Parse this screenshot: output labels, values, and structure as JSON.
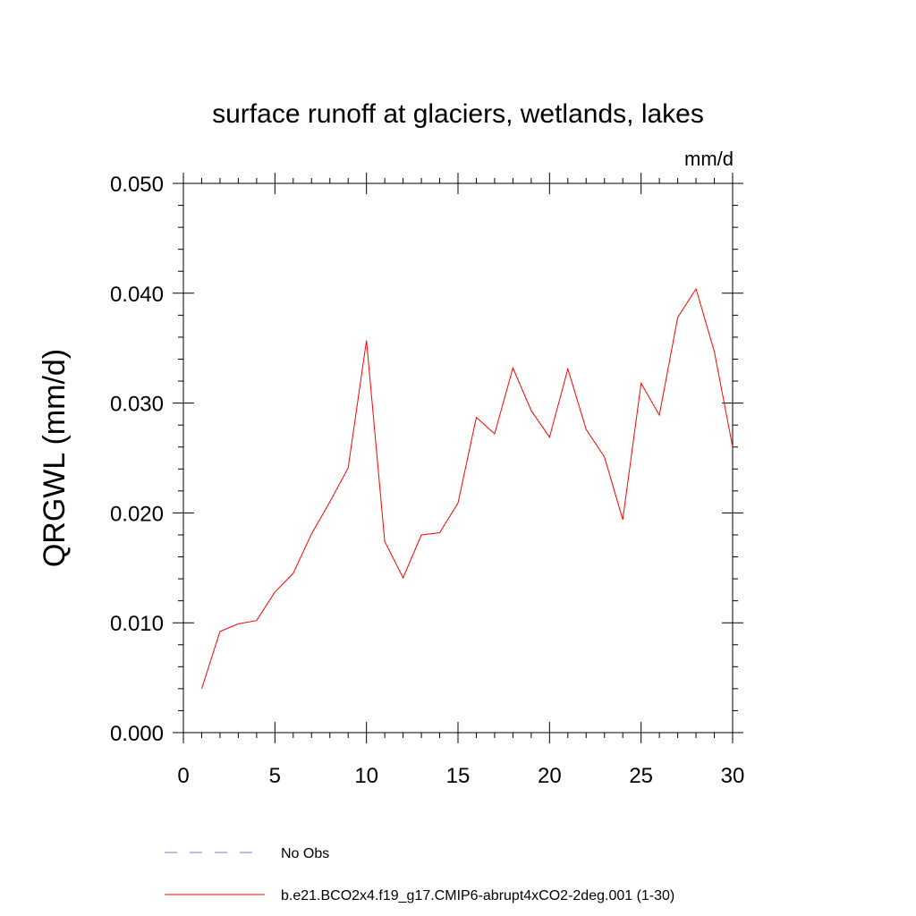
{
  "chart_data": {
    "type": "line",
    "title": "surface runoff at glaciers, wetlands, lakes",
    "units": "mm/d",
    "xlabel": "",
    "ylabel": "QRGWL  (mm/d)",
    "xlim": [
      0,
      30
    ],
    "ylim": [
      0.0,
      0.05
    ],
    "xticks": [
      0,
      5,
      10,
      15,
      20,
      25,
      30
    ],
    "xtick_labels": [
      "0",
      "5",
      "10",
      "15",
      "20",
      "25",
      "30"
    ],
    "yticks": [
      0.0,
      0.01,
      0.02,
      0.03,
      0.04,
      0.05
    ],
    "ytick_labels": [
      "0.000",
      "0.010",
      "0.020",
      "0.030",
      "0.040",
      "0.050"
    ],
    "grid": false,
    "legend_placement": "bottom-left",
    "series": [
      {
        "name": "No Obs",
        "color": "#7d7ac4",
        "style": "dashed",
        "x": [],
        "y": []
      },
      {
        "name": "b.e21.BCO2x4.f19_g17.CMIP6-abrupt4xCO2-2deg.001 (1-30)",
        "color": "#ff0000",
        "style": "solid",
        "x": [
          1,
          2,
          3,
          4,
          5,
          6,
          7,
          8,
          9,
          10,
          11,
          12,
          13,
          14,
          15,
          16,
          17,
          18,
          19,
          20,
          21,
          22,
          23,
          24,
          25,
          26,
          27,
          28,
          29,
          30
        ],
        "y": [
          0.004,
          0.0092,
          0.0099,
          0.0102,
          0.0128,
          0.0145,
          0.0181,
          0.021,
          0.0241,
          0.0357,
          0.0174,
          0.0141,
          0.018,
          0.0182,
          0.0209,
          0.0287,
          0.0272,
          0.0332,
          0.0293,
          0.0269,
          0.0331,
          0.0276,
          0.0251,
          0.0194,
          0.0318,
          0.0289,
          0.0378,
          0.0404,
          0.0347,
          0.026
        ]
      }
    ]
  }
}
